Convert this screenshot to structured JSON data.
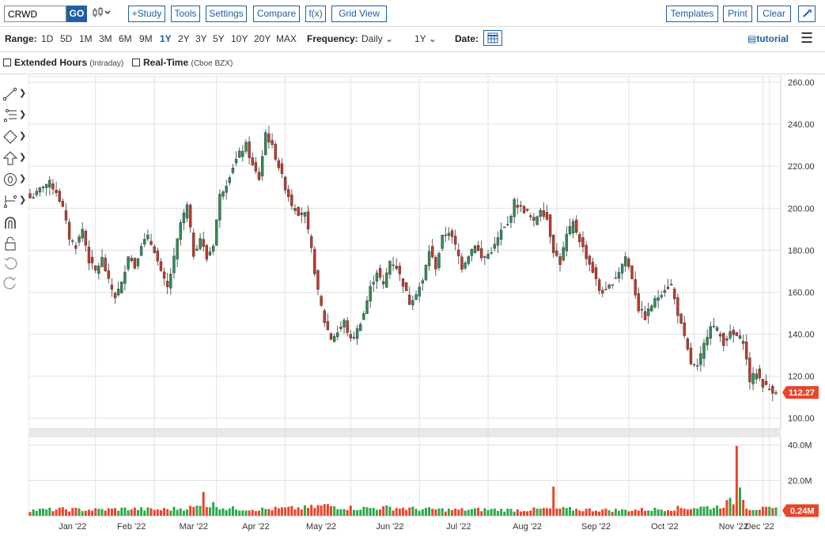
{
  "toolbar": {
    "symbol": "CRWD",
    "go": "GO",
    "study": "+Study",
    "tools": "Tools",
    "settings": "Settings",
    "compare": "Compare",
    "fx": "f(x)",
    "grid_view": "Grid View",
    "templates": "Templates",
    "print": "Print",
    "clear": "Clear"
  },
  "range_bar": {
    "range_label": "Range:",
    "ranges": [
      "1D",
      "5D",
      "1M",
      "3M",
      "6M",
      "9M",
      "1Y",
      "2Y",
      "3Y",
      "5Y",
      "10Y",
      "20Y",
      "MAX"
    ],
    "active_range": "1Y",
    "frequency_label": "Frequency:",
    "frequency": "Daily",
    "period": "1Y",
    "date_label": "Date:",
    "tutorial": "tutorial"
  },
  "options": {
    "extended_hours": "Extended Hours",
    "extended_hours_note": "(Intraday)",
    "real_time": "Real-Time",
    "real_time_note": "(Cboe BZX)"
  },
  "colors": {
    "up": "#2e8b57",
    "down": "#c0392b",
    "accent": "#1f5fa6",
    "price_tag": "#e8452c"
  },
  "chart_data": {
    "type": "candlestick",
    "grid": true,
    "price_axis": {
      "ticks": [
        "100.00",
        "120.00",
        "140.00",
        "160.00",
        "180.00",
        "200.00",
        "220.00",
        "240.00",
        "260.00"
      ],
      "ylim": [
        95,
        263
      ]
    },
    "volume_axis": {
      "ticks": [
        "20.0M",
        "40.0M"
      ],
      "ylim": [
        0,
        43
      ]
    },
    "last_price": "112.27",
    "last_volume": "0.24M",
    "x_labels": [
      "Jan '22",
      "Feb '22",
      "Mar '22",
      "Apr '22",
      "May '22",
      "Jun '22",
      "Jul '22",
      "Aug '22",
      "Sep '22",
      "Oct '22",
      "Nov '22",
      "Dec '22"
    ],
    "close_path": [
      [
        0,
        205
      ],
      [
        2,
        207
      ],
      [
        4,
        211
      ],
      [
        6,
        212
      ],
      [
        8,
        208
      ],
      [
        10,
        200
      ],
      [
        12,
        186
      ],
      [
        14,
        182
      ],
      [
        16,
        190
      ],
      [
        18,
        175
      ],
      [
        20,
        170
      ],
      [
        22,
        176
      ],
      [
        24,
        165
      ],
      [
        26,
        158
      ],
      [
        28,
        164
      ],
      [
        30,
        178
      ],
      [
        32,
        172
      ],
      [
        34,
        183
      ],
      [
        36,
        186
      ],
      [
        38,
        180
      ],
      [
        40,
        169
      ],
      [
        42,
        162
      ],
      [
        44,
        176
      ],
      [
        46,
        193
      ],
      [
        48,
        201
      ],
      [
        50,
        178
      ],
      [
        52,
        186
      ],
      [
        54,
        176
      ],
      [
        56,
        183
      ],
      [
        58,
        206
      ],
      [
        60,
        212
      ],
      [
        62,
        220
      ],
      [
        64,
        226
      ],
      [
        66,
        230
      ],
      [
        68,
        220
      ],
      [
        70,
        214
      ],
      [
        72,
        236
      ],
      [
        74,
        229
      ],
      [
        76,
        220
      ],
      [
        78,
        210
      ],
      [
        80,
        202
      ],
      [
        82,
        198
      ],
      [
        84,
        197
      ],
      [
        86,
        180
      ],
      [
        88,
        160
      ],
      [
        90,
        146
      ],
      [
        92,
        138
      ],
      [
        94,
        141
      ],
      [
        96,
        146
      ],
      [
        98,
        137
      ],
      [
        100,
        142
      ],
      [
        102,
        150
      ],
      [
        104,
        162
      ],
      [
        106,
        170
      ],
      [
        108,
        163
      ],
      [
        110,
        175
      ],
      [
        112,
        172
      ],
      [
        114,
        164
      ],
      [
        116,
        155
      ],
      [
        118,
        160
      ],
      [
        120,
        165
      ],
      [
        122,
        180
      ],
      [
        124,
        172
      ],
      [
        126,
        186
      ],
      [
        128,
        189
      ],
      [
        130,
        182
      ],
      [
        132,
        172
      ],
      [
        134,
        178
      ],
      [
        136,
        183
      ],
      [
        138,
        176
      ],
      [
        140,
        178
      ],
      [
        142,
        182
      ],
      [
        144,
        189
      ],
      [
        146,
        192
      ],
      [
        148,
        203
      ],
      [
        150,
        200
      ],
      [
        152,
        198
      ],
      [
        154,
        193
      ],
      [
        156,
        200
      ],
      [
        158,
        195
      ],
      [
        160,
        180
      ],
      [
        162,
        174
      ],
      [
        164,
        187
      ],
      [
        166,
        193
      ],
      [
        168,
        185
      ],
      [
        170,
        177
      ],
      [
        172,
        170
      ],
      [
        174,
        161
      ],
      [
        176,
        160
      ],
      [
        178,
        165
      ],
      [
        180,
        170
      ],
      [
        182,
        177
      ],
      [
        184,
        167
      ],
      [
        186,
        152
      ],
      [
        188,
        148
      ],
      [
        190,
        154
      ],
      [
        192,
        158
      ],
      [
        194,
        162
      ],
      [
        196,
        163
      ],
      [
        198,
        150
      ],
      [
        200,
        138
      ],
      [
        202,
        126
      ],
      [
        204,
        124
      ],
      [
        206,
        135
      ],
      [
        208,
        145
      ],
      [
        210,
        142
      ],
      [
        212,
        136
      ],
      [
        214,
        140
      ],
      [
        216,
        139
      ],
      [
        218,
        137
      ],
      [
        220,
        118
      ],
      [
        222,
        122
      ],
      [
        224,
        116
      ],
      [
        226,
        114
      ],
      [
        228,
        112.27
      ]
    ],
    "volume_path": [
      [
        0,
        3
      ],
      [
        10,
        3.5
      ],
      [
        20,
        3.2
      ],
      [
        30,
        3.8
      ],
      [
        40,
        3.3
      ],
      [
        50,
        4.5
      ],
      [
        56,
        6
      ],
      [
        60,
        4
      ],
      [
        70,
        3.5
      ],
      [
        80,
        4
      ],
      [
        85,
        4.3
      ],
      [
        90,
        5.5
      ],
      [
        100,
        4
      ],
      [
        110,
        4.4
      ],
      [
        120,
        3.6
      ],
      [
        130,
        3.2
      ],
      [
        140,
        3.4
      ],
      [
        150,
        3.1
      ],
      [
        160,
        3.8
      ],
      [
        170,
        3.3
      ],
      [
        180,
        3
      ],
      [
        190,
        3.4
      ],
      [
        200,
        4.2
      ],
      [
        210,
        4.8
      ],
      [
        215,
        8
      ],
      [
        220,
        4
      ],
      [
        228,
        3.5
      ]
    ],
    "volume_spikes": [
      [
        53,
        13.5
      ],
      [
        160,
        16.5
      ],
      [
        216,
        39.5
      ],
      [
        217,
        16
      ],
      [
        218,
        9
      ]
    ]
  }
}
